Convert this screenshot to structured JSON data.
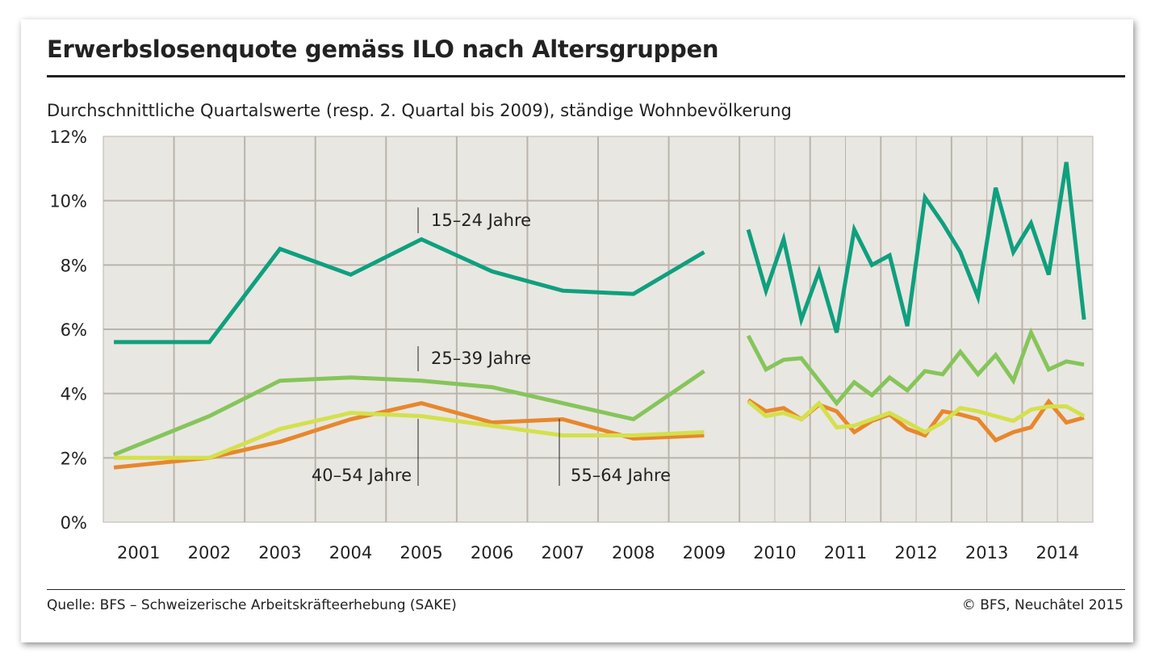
{
  "title": "Erwerbslosenquote gemäss ILO nach Altersgruppen",
  "subtitle": "Durchschnittliche Quartalswerte (resp. 2. Quartal bis 2009), ständige Wohnbevölkerung",
  "source": "Quelle: BFS – Schweizerische Arbeitskräfteerhebung (SAKE)",
  "copyright": "© BFS, Neuchâtel 2015",
  "chart_data": {
    "type": "line",
    "ylim": [
      0,
      12
    ],
    "y_ticks": [
      0,
      2,
      4,
      6,
      8,
      10,
      12
    ],
    "y_tick_labels": [
      "0%",
      "2%",
      "4%",
      "6%",
      "8%",
      "10%",
      "12%"
    ],
    "x_tick_labels": [
      "2001",
      "2002",
      "2003",
      "2004",
      "2005",
      "2006",
      "2007",
      "2008",
      "2009",
      "2010",
      "2011",
      "2012",
      "2013",
      "2014"
    ],
    "grid": true,
    "x_annual": [
      "2001",
      "2002",
      "2003",
      "2004",
      "2005",
      "2006",
      "2007",
      "2008",
      "2009"
    ],
    "x_quarterly": [
      "2010Q1",
      "2010Q2",
      "2010Q3",
      "2010Q4",
      "2011Q1",
      "2011Q2",
      "2011Q3",
      "2011Q4",
      "2012Q1",
      "2012Q2",
      "2012Q3",
      "2012Q4",
      "2013Q1",
      "2013Q2",
      "2013Q3",
      "2013Q4",
      "2014Q1",
      "2014Q2",
      "2014Q3",
      "2014Q4"
    ],
    "series": [
      {
        "name": "15–24 Jahre",
        "color": "#0fa07e",
        "annual": [
          5.6,
          5.6,
          8.5,
          7.7,
          8.8,
          7.8,
          7.2,
          7.1,
          8.4
        ],
        "quarterly": [
          9.1,
          7.2,
          8.8,
          6.3,
          7.8,
          5.9,
          9.1,
          8.0,
          8.3,
          6.1,
          10.1,
          9.3,
          8.4,
          7.0,
          10.4,
          8.4,
          9.3,
          7.7,
          11.2,
          6.3
        ]
      },
      {
        "name": "25–39 Jahre",
        "color": "#86c55a",
        "annual": [
          2.1,
          3.3,
          4.4,
          4.5,
          4.4,
          4.2,
          3.7,
          3.2,
          4.7
        ],
        "quarterly": [
          5.8,
          4.75,
          5.05,
          5.1,
          4.4,
          3.7,
          4.35,
          3.95,
          4.5,
          4.1,
          4.7,
          4.6,
          5.3,
          4.6,
          5.2,
          4.4,
          5.9,
          4.75,
          5.0,
          4.9
        ]
      },
      {
        "name": "40–54 Jahre",
        "color": "#e8872c",
        "annual": [
          1.7,
          2.0,
          2.5,
          3.2,
          3.7,
          3.1,
          3.2,
          2.6,
          2.7
        ],
        "quarterly": [
          3.8,
          3.45,
          3.55,
          3.2,
          3.65,
          3.45,
          2.8,
          3.15,
          3.35,
          2.9,
          2.7,
          3.45,
          3.35,
          3.2,
          2.55,
          2.8,
          2.95,
          3.75,
          3.1,
          3.25
        ]
      },
      {
        "name": "55–64 Jahre",
        "color": "#d4e04c",
        "annual": [
          2.0,
          2.0,
          2.9,
          3.4,
          3.3,
          3.0,
          2.7,
          2.7,
          2.8
        ],
        "quarterly": [
          3.75,
          3.3,
          3.4,
          3.2,
          3.7,
          2.95,
          3.0,
          3.2,
          3.4,
          3.1,
          2.8,
          3.1,
          3.55,
          3.45,
          3.3,
          3.15,
          3.5,
          3.6,
          3.6,
          3.3
        ]
      }
    ],
    "annotations": [
      "15–24 Jahre",
      "25–39 Jahre",
      "40–54 Jahre",
      "55–64 Jahre"
    ]
  }
}
